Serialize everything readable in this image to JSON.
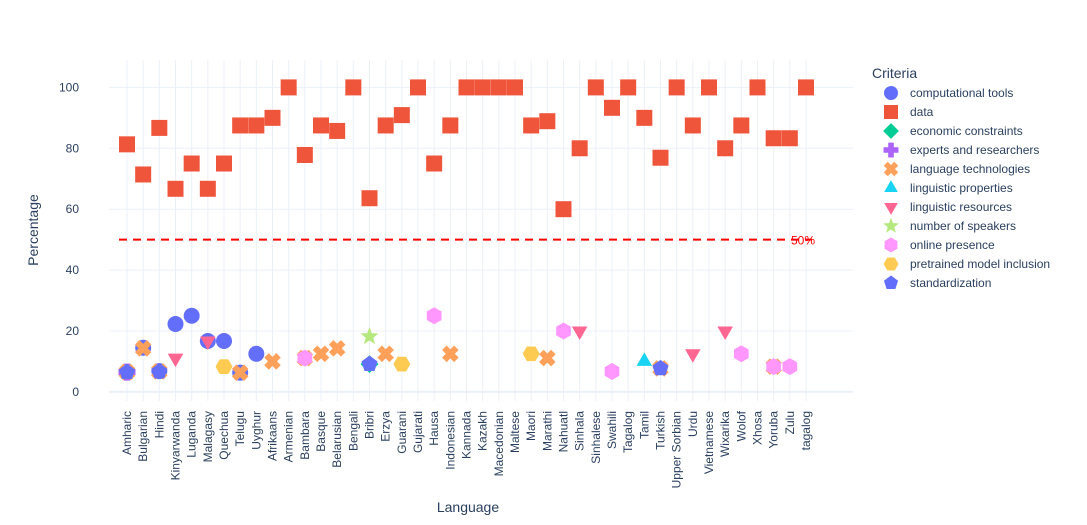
{
  "chart_data": {
    "type": "scatter",
    "title": "",
    "xlabel": "Language",
    "ylabel": "Percentage",
    "ylim": [
      -3,
      109
    ],
    "yticks": [
      0,
      20,
      40,
      60,
      80,
      100
    ],
    "grid": true,
    "legend_title": "Criteria",
    "legend_position": "right",
    "categories": [
      "Amharic",
      "Bulgarian",
      "Hindi",
      "Kinyarwanda",
      "Luganda",
      "Malagasy",
      "Quechua",
      "Telugu",
      "Uyghur",
      "Afrikaans",
      "Armenian",
      "Bambara",
      "Basque",
      "Belarusian",
      "Bengali",
      "Bribri",
      "Erzya",
      "Guarani",
      "Gujarati",
      "Hausa",
      "Indonesian",
      "Kannada",
      "Kazakh",
      "Macedonian",
      "Maltese",
      "Maori",
      "Marathi",
      "Nahuatl",
      "Sinhala",
      "Sinhalese",
      "Swahili",
      "Tagalog",
      "Tamil",
      "Turkish",
      "Upper Sorbian",
      "Urdu",
      "Vietnamese",
      "Wixarika",
      "Wolof",
      "Xhosa",
      "Yoruba",
      "Zulu",
      "tagalog"
    ],
    "reference_line": {
      "y": 50,
      "label": "50%",
      "color": "#ff0000"
    },
    "series": [
      {
        "name": "computational tools",
        "color": "#636efa",
        "symbol": "circle",
        "points": [
          [
            "Amharic",
            6.5
          ],
          [
            "Bulgarian",
            14.5
          ],
          [
            "Hindi",
            6.8
          ],
          [
            "Kinyarwanda",
            22.3
          ],
          [
            "Luganda",
            25
          ],
          [
            "Malagasy",
            16.7
          ],
          [
            "Quechua",
            16.7
          ],
          [
            "Telugu",
            6.3
          ],
          [
            "Uyghur",
            12.5
          ]
        ]
      },
      {
        "name": "data",
        "color": "#ef553b",
        "symbol": "square",
        "points": [
          [
            "Amharic",
            81.3
          ],
          [
            "Bulgarian",
            71.4
          ],
          [
            "Hindi",
            86.7
          ],
          [
            "Kinyarwanda",
            66.7
          ],
          [
            "Luganda",
            75
          ],
          [
            "Malagasy",
            66.7
          ],
          [
            "Quechua",
            75
          ],
          [
            "Telugu",
            87.5
          ],
          [
            "Uyghur",
            87.5
          ],
          [
            "Afrikaans",
            90
          ],
          [
            "Armenian",
            100
          ],
          [
            "Bambara",
            77.8
          ],
          [
            "Basque",
            87.5
          ],
          [
            "Belarusian",
            85.7
          ],
          [
            "Bengali",
            100
          ],
          [
            "Bribri",
            63.6
          ],
          [
            "Erzya",
            87.5
          ],
          [
            "Guarani",
            90.9
          ],
          [
            "Gujarati",
            100
          ],
          [
            "Hausa",
            75
          ],
          [
            "Indonesian",
            87.5
          ],
          [
            "Kannada",
            100
          ],
          [
            "Kazakh",
            100
          ],
          [
            "Macedonian",
            100
          ],
          [
            "Maltese",
            100
          ],
          [
            "Maori",
            87.5
          ],
          [
            "Marathi",
            88.9
          ],
          [
            "Nahuatl",
            60
          ],
          [
            "Sinhala",
            80
          ],
          [
            "Sinhalese",
            100
          ],
          [
            "Swahili",
            93.3
          ],
          [
            "Tagalog",
            100
          ],
          [
            "Tamil",
            90
          ],
          [
            "Turkish",
            76.9
          ],
          [
            "Upper Sorbian",
            100
          ],
          [
            "Urdu",
            87.5
          ],
          [
            "Vietnamese",
            100
          ],
          [
            "Wixarika",
            80
          ],
          [
            "Wolof",
            87.5
          ],
          [
            "Xhosa",
            100
          ],
          [
            "Yoruba",
            83.3
          ],
          [
            "Zulu",
            83.3
          ],
          [
            "tagalog",
            100
          ]
        ]
      },
      {
        "name": "economic constraints",
        "color": "#00cc96",
        "symbol": "diamond",
        "points": [
          [
            "Bribri",
            9.1
          ]
        ]
      },
      {
        "name": "experts and researchers",
        "color": "#ab63fa",
        "symbol": "cross",
        "points": [
          [
            "Amharic",
            6.5
          ]
        ]
      },
      {
        "name": "language technologies",
        "color": "#ffa15a",
        "symbol": "x",
        "points": [
          [
            "Amharic",
            6.5
          ],
          [
            "Bulgarian",
            14.3
          ],
          [
            "Hindi",
            6.7
          ],
          [
            "Telugu",
            6.3
          ],
          [
            "Afrikaans",
            10
          ],
          [
            "Bambara",
            11.1
          ],
          [
            "Basque",
            12.5
          ],
          [
            "Belarusian",
            14.3
          ],
          [
            "Erzya",
            12.5
          ],
          [
            "Indonesian",
            12.5
          ],
          [
            "Marathi",
            11.1
          ],
          [
            "Turkish",
            7.7
          ],
          [
            "Yoruba",
            8.3
          ]
        ]
      },
      {
        "name": "linguistic properties",
        "color": "#19d3f3",
        "symbol": "triangle-up",
        "points": [
          [
            "Tamil",
            10
          ]
        ]
      },
      {
        "name": "linguistic resources",
        "color": "#ff6692",
        "symbol": "triangle-down",
        "points": [
          [
            "Kinyarwanda",
            11.1
          ],
          [
            "Malagasy",
            16.7
          ],
          [
            "Sinhala",
            20
          ],
          [
            "Urdu",
            12.5
          ],
          [
            "Wixarika",
            20
          ]
        ]
      },
      {
        "name": "number of speakers",
        "color": "#b6e880",
        "symbol": "star",
        "points": [
          [
            "Bribri",
            18.2
          ]
        ]
      },
      {
        "name": "online presence",
        "color": "#ff97ff",
        "symbol": "hexagon",
        "points": [
          [
            "Bambara",
            11.1
          ],
          [
            "Hausa",
            25
          ],
          [
            "Nahuatl",
            20
          ],
          [
            "Swahili",
            6.7
          ],
          [
            "Wolof",
            12.5
          ],
          [
            "Yoruba",
            8.3
          ],
          [
            "Zulu",
            8.3
          ]
        ]
      },
      {
        "name": "pretrained model inclusion",
        "color": "#fecb52",
        "symbol": "hexagon2",
        "points": [
          [
            "Quechua",
            8.3
          ],
          [
            "Guarani",
            9.1
          ],
          [
            "Maori",
            12.5
          ]
        ]
      },
      {
        "name": "standardization",
        "color": "#636efa",
        "symbol": "pentagon",
        "points": [
          [
            "Amharic",
            6.5
          ],
          [
            "Hindi",
            6.7
          ],
          [
            "Bribri",
            9.1
          ],
          [
            "Turkish",
            7.7
          ]
        ]
      }
    ]
  }
}
